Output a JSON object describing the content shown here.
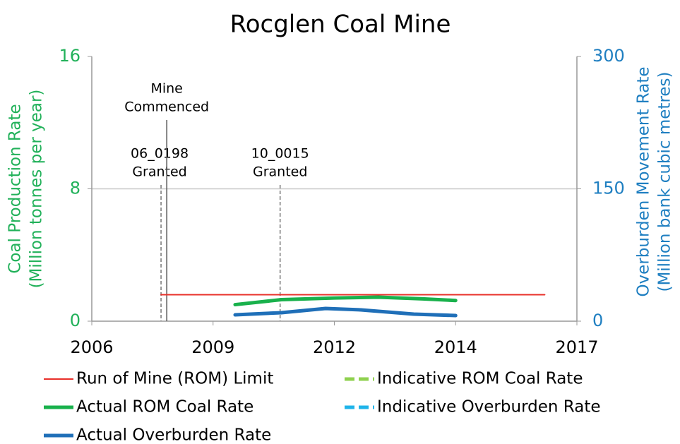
{
  "chart_data": {
    "type": "line",
    "title": "Rocglen Coal Mine",
    "y_label": [
      "Coal Production Rate",
      "(Million tonnes per year)"
    ],
    "y2_label": [
      "Overburden Movement Rate",
      "(Million bank cubic metres)"
    ],
    "xlim": [
      2006,
      2017
    ],
    "xticks": [
      {
        "value": 2006,
        "label": "2006"
      },
      {
        "value": 2008.75,
        "label": "2009"
      },
      {
        "value": 2011.5,
        "label": "2012"
      },
      {
        "value": 2014.25,
        "label": "2014"
      },
      {
        "value": 2017,
        "label": "2017"
      }
    ],
    "ylim": [
      0,
      16
    ],
    "yticks": [
      0,
      8,
      16
    ],
    "y2lim": [
      0,
      300
    ],
    "y2ticks": [
      0,
      150,
      300
    ],
    "grid": true,
    "y_color": "#22b15a",
    "y2_color": "#1f7fc1",
    "series": [
      {
        "name": "Run of Mine (ROM) Limit",
        "color": "#e8302a",
        "width": 2,
        "dash": false,
        "axis": "y",
        "x": [
          2007.57,
          2016.27
        ],
        "values": [
          1.6,
          1.6
        ]
      },
      {
        "name": "Indicative ROM Coal Rate",
        "color": "#8fd14f",
        "width": 5,
        "dash": true,
        "axis": "y",
        "x": [],
        "values": []
      },
      {
        "name": "Actual ROM Coal Rate",
        "color": "#19b14c",
        "width": 5,
        "dash": false,
        "axis": "y",
        "x": [
          2009.25,
          2010.3,
          2011.5,
          2012.5,
          2013.5,
          2014.25
        ],
        "values": [
          1.0,
          1.3,
          1.4,
          1.45,
          1.35,
          1.25
        ]
      },
      {
        "name": "Indicative Overburden Rate",
        "color": "#1fb4ea",
        "width": 5,
        "dash": true,
        "axis": "y2",
        "x": [],
        "values": []
      },
      {
        "name": "Actual Overburden Rate",
        "color": "#1f6fb8",
        "width": 5,
        "dash": false,
        "axis": "y2",
        "x": [
          2009.25,
          2010.3,
          2011.3,
          2012.1,
          2013.3,
          2014.25
        ],
        "values": [
          7.2,
          9.6,
          14.4,
          12.8,
          8,
          6.4
        ]
      }
    ],
    "annotations": [
      {
        "x": 2007.57,
        "dash": true,
        "lines": [
          "06_0198",
          "Granted"
        ],
        "level": 1
      },
      {
        "x": 2007.7,
        "dash": false,
        "lines": [
          "Mine",
          "Commenced"
        ],
        "level": 0
      },
      {
        "x": 2010.27,
        "dash": true,
        "lines": [
          "10_0015",
          "Granted"
        ],
        "level": 1
      }
    ]
  }
}
